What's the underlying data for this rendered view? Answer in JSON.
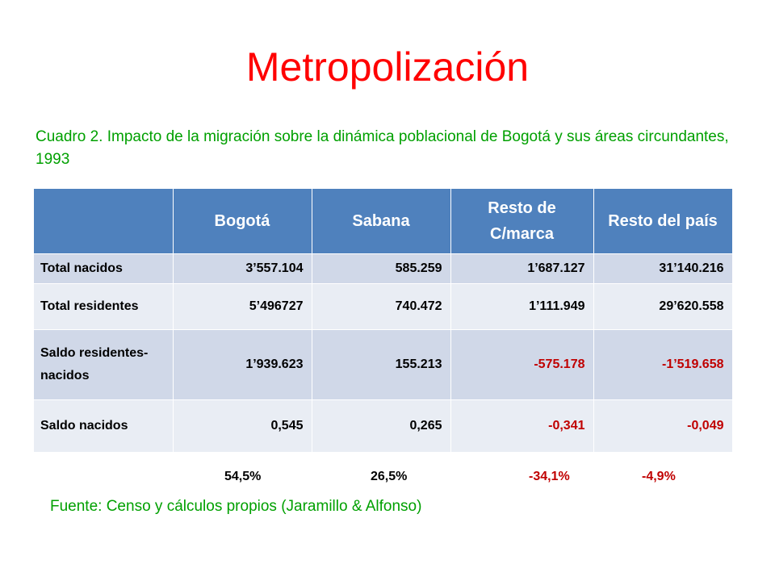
{
  "title": "Metropolización",
  "caption": "Cuadro 2. Impacto de la migración sobre la dinámica poblacional de Bogotá y sus áreas circundantes, 1993",
  "table": {
    "headers": [
      "",
      "Bogotá",
      "Sabana",
      "Resto de C/marca",
      "Resto del país"
    ],
    "rows": [
      {
        "label": "Total nacidos",
        "values": [
          "3’557.104",
          "585.259",
          "1’687.127",
          "31’140.216"
        ]
      },
      {
        "label": "Total residentes",
        "values": [
          "5’496727",
          "740.472",
          "1’111.949",
          "29’620.558"
        ]
      },
      {
        "label": "Saldo residentes-nacidos",
        "values": [
          "1’939.623",
          "155.213",
          "-575.178",
          "-1’519.658"
        ]
      },
      {
        "label": "Saldo nacidos",
        "values": [
          "0,545",
          "0,265",
          "-0,341",
          "-0,049"
        ]
      }
    ]
  },
  "percentages": [
    "54,5%",
    "26,5%",
    "-34,1%",
    "-4,9%"
  ],
  "source": "Fuente: Censo y cálculos propios (Jaramillo & Alfonso)",
  "colors": {
    "title": "#ff0000",
    "caption": "#00a000",
    "header_bg": "#4f81bd",
    "row_odd": "#d0d8e8",
    "row_even": "#e9edf4",
    "negative": "#c00000"
  }
}
